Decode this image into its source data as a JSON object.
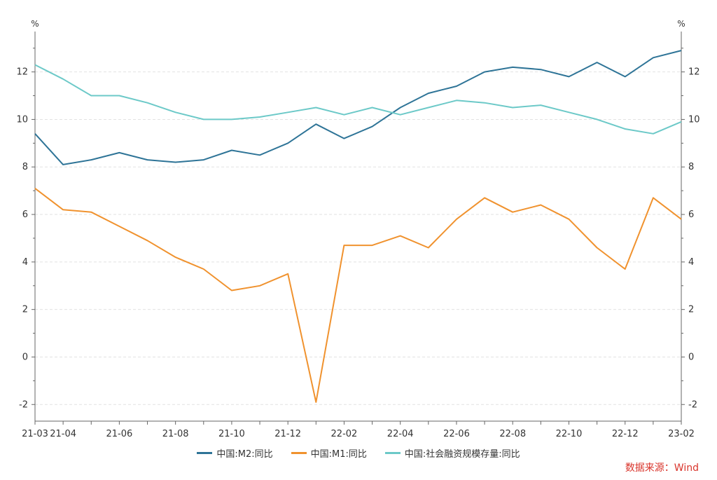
{
  "chart_data": {
    "type": "line",
    "y_unit_left": "%",
    "y_unit_right": "%",
    "ylim": [
      -2.7,
      13.7
    ],
    "yticks": [
      -2,
      0,
      2,
      4,
      6,
      8,
      10,
      12
    ],
    "ytick_labels": [
      "-2",
      "0",
      "2",
      "4",
      "6",
      "8",
      "10",
      "12"
    ],
    "x": [
      "21-03",
      "21-04",
      "21-05",
      "21-06",
      "21-07",
      "21-08",
      "21-09",
      "21-10",
      "21-11",
      "21-12",
      "22-01",
      "22-02",
      "22-03",
      "22-04",
      "22-05",
      "22-06",
      "22-07",
      "22-08",
      "22-09",
      "22-10",
      "22-11",
      "22-12",
      "23-01",
      "23-02"
    ],
    "xtick_labels": [
      "21-03",
      "21-04",
      "",
      "21-06",
      "",
      "21-08",
      "",
      "21-10",
      "",
      "21-12",
      "",
      "22-02",
      "",
      "22-04",
      "",
      "22-06",
      "",
      "22-08",
      "",
      "22-10",
      "",
      "22-12",
      "",
      "23-02"
    ],
    "grid": true,
    "legend_position": "bottom",
    "series": [
      {
        "name": "中国:M2:同比",
        "color": "#2e7497",
        "values": [
          9.4,
          8.1,
          8.3,
          8.6,
          8.3,
          8.2,
          8.3,
          8.7,
          8.5,
          9.0,
          9.8,
          9.2,
          9.7,
          10.5,
          11.1,
          11.4,
          12.0,
          12.2,
          12.1,
          11.8,
          12.4,
          11.8,
          12.6,
          12.9
        ]
      },
      {
        "name": "中国:M1:同比",
        "color": "#f0922e",
        "values": [
          7.1,
          6.2,
          6.1,
          5.5,
          4.9,
          4.2,
          3.7,
          2.8,
          3.0,
          3.5,
          -1.9,
          4.7,
          4.7,
          5.1,
          4.6,
          5.8,
          6.7,
          6.1,
          6.4,
          5.8,
          4.6,
          3.7,
          6.7,
          5.8
        ]
      },
      {
        "name": "中国:社会融资规模存量:同比",
        "color": "#6cc9c8",
        "values": [
          12.3,
          11.7,
          11.0,
          11.0,
          10.7,
          10.3,
          10.0,
          10.0,
          10.1,
          10.3,
          10.5,
          10.2,
          10.5,
          10.2,
          10.5,
          10.8,
          10.7,
          10.5,
          10.6,
          10.3,
          10.0,
          9.6,
          9.4,
          9.9
        ]
      }
    ]
  },
  "source_text": "数据来源：Wind"
}
